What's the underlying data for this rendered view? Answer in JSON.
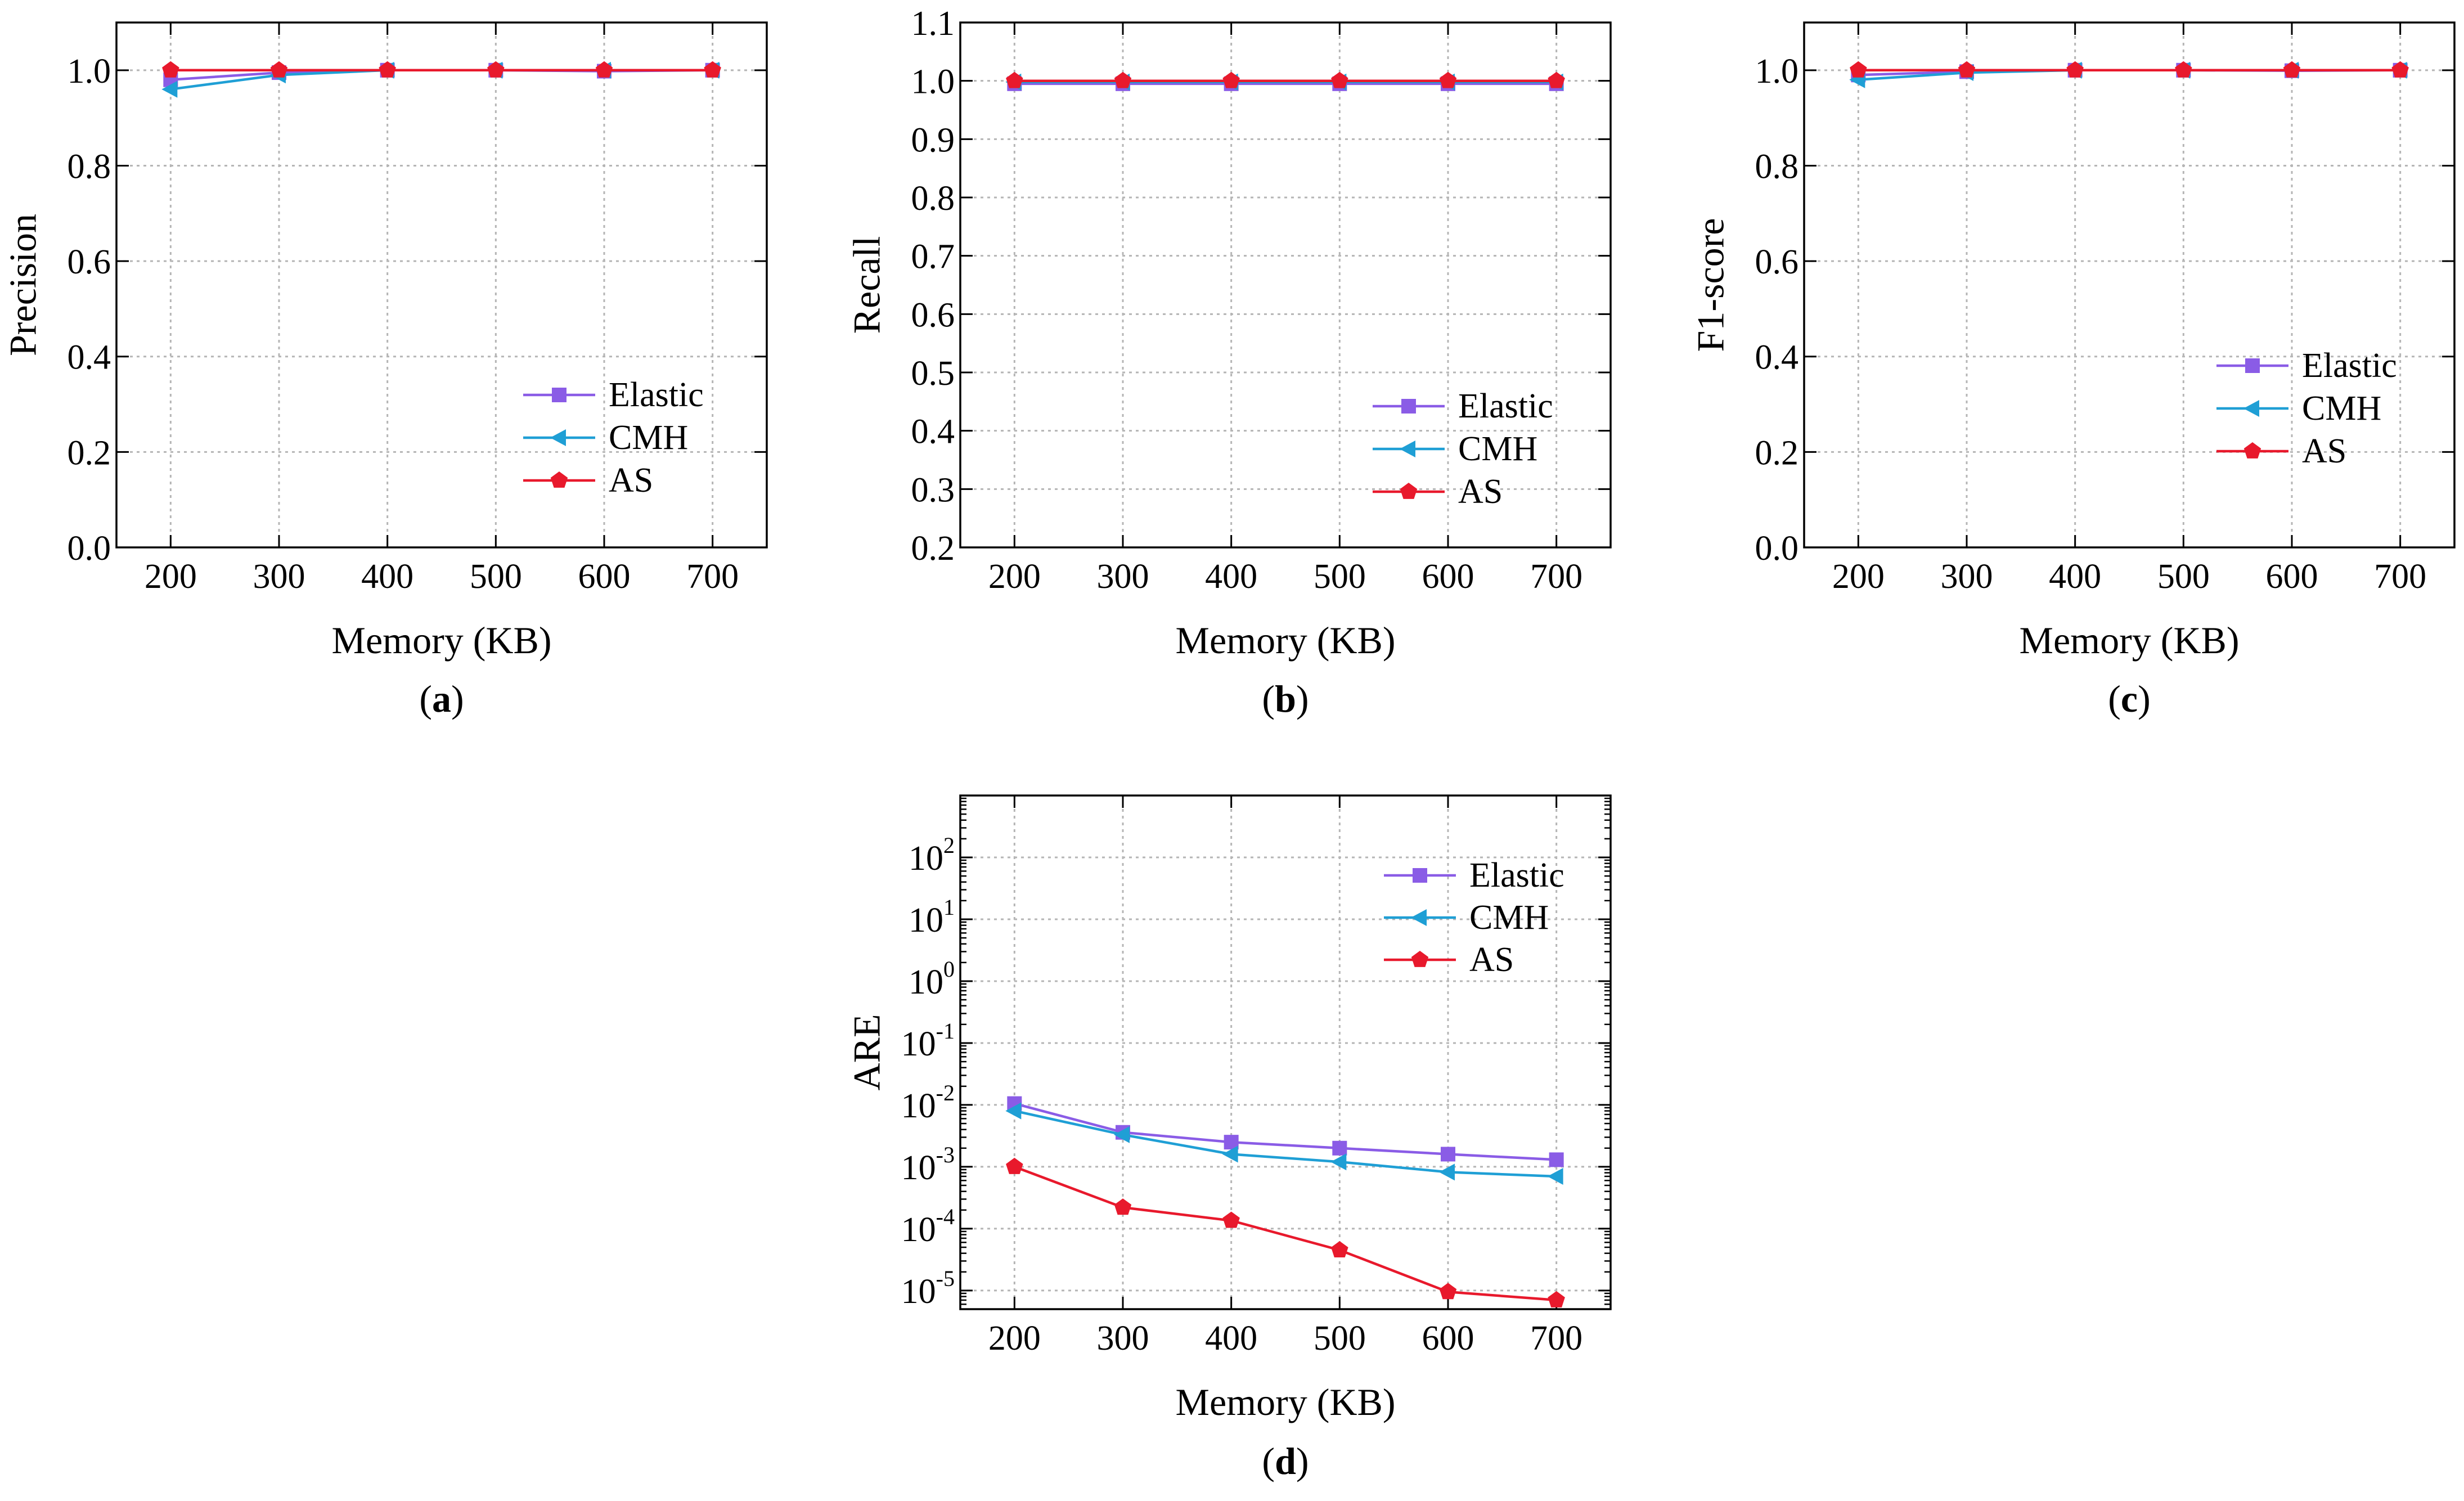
{
  "chart_data": [
    {
      "id": "a",
      "type": "line",
      "caption": "a",
      "xlabel": "Memory (KB)",
      "ylabel": "Precision",
      "yscale": "linear",
      "x": [
        200,
        300,
        400,
        500,
        600,
        700
      ],
      "xticks": [
        "200",
        "300",
        "400",
        "500",
        "600",
        "700"
      ],
      "xlim": [
        150,
        750
      ],
      "ylim": [
        0.0,
        1.1
      ],
      "yticks": [
        0.0,
        0.2,
        0.4,
        0.6,
        0.8,
        1.0
      ],
      "ytick_labels": [
        "0.0",
        "0.2",
        "0.4",
        "0.6",
        "0.8",
        "1.0"
      ],
      "grid": true,
      "legend_position": "lower-right",
      "series": [
        {
          "name": "Elastic",
          "values": [
            0.98,
            0.995,
            1.0,
            1.0,
            0.998,
            1.0
          ]
        },
        {
          "name": "CMH",
          "values": [
            0.96,
            0.99,
            1.0,
            1.0,
            1.0,
            1.0
          ]
        },
        {
          "name": "AS",
          "values": [
            1.0,
            1.0,
            1.0,
            1.0,
            1.0,
            1.0
          ]
        }
      ]
    },
    {
      "id": "b",
      "type": "line",
      "caption": "b",
      "xlabel": "Memory (KB)",
      "ylabel": "Recall",
      "yscale": "linear",
      "x": [
        200,
        300,
        400,
        500,
        600,
        700
      ],
      "xticks": [
        "200",
        "300",
        "400",
        "500",
        "600",
        "700"
      ],
      "xlim": [
        150,
        750
      ],
      "ylim": [
        0.2,
        1.1
      ],
      "yticks": [
        0.2,
        0.3,
        0.4,
        0.5,
        0.6,
        0.7,
        0.8,
        0.9,
        1.0,
        1.1
      ],
      "ytick_labels": [
        "0.2",
        "0.3",
        "0.4",
        "0.5",
        "0.6",
        "0.7",
        "0.8",
        "0.9",
        "1.0",
        "1.1"
      ],
      "grid": true,
      "legend_position": "lower-right",
      "series": [
        {
          "name": "Elastic",
          "values": [
            0.995,
            0.995,
            0.995,
            0.995,
            0.995,
            0.995
          ]
        },
        {
          "name": "CMH",
          "values": [
            0.998,
            0.998,
            0.998,
            0.998,
            0.998,
            0.998
          ]
        },
        {
          "name": "AS",
          "values": [
            1.0,
            1.0,
            1.0,
            1.0,
            1.0,
            1.0
          ]
        }
      ]
    },
    {
      "id": "c",
      "type": "line",
      "caption": "c",
      "xlabel": "Memory (KB)",
      "ylabel": "F1-score",
      "yscale": "linear",
      "x": [
        200,
        300,
        400,
        500,
        600,
        700
      ],
      "xticks": [
        "200",
        "300",
        "400",
        "500",
        "600",
        "700"
      ],
      "xlim": [
        150,
        750
      ],
      "ylim": [
        0.0,
        1.1
      ],
      "yticks": [
        0.0,
        0.2,
        0.4,
        0.6,
        0.8,
        1.0
      ],
      "ytick_labels": [
        "0.0",
        "0.2",
        "0.4",
        "0.6",
        "0.8",
        "1.0"
      ],
      "grid": true,
      "legend_position": "lower-right",
      "series": [
        {
          "name": "Elastic",
          "values": [
            0.99,
            0.997,
            1.0,
            1.0,
            0.999,
            1.0
          ]
        },
        {
          "name": "CMH",
          "values": [
            0.98,
            0.995,
            1.0,
            1.0,
            1.0,
            1.0
          ]
        },
        {
          "name": "AS",
          "values": [
            1.0,
            1.0,
            1.0,
            1.0,
            1.0,
            1.0
          ]
        }
      ]
    },
    {
      "id": "d",
      "type": "line",
      "caption": "d",
      "xlabel": "Memory (KB)",
      "ylabel": "ARE",
      "yscale": "log",
      "x": [
        200,
        300,
        400,
        500,
        600,
        700
      ],
      "xticks": [
        "200",
        "300",
        "400",
        "500",
        "600",
        "700"
      ],
      "xlim": [
        150,
        750
      ],
      "ylim": [
        5e-06,
        1000
      ],
      "yticks": [
        1e-05,
        0.0001,
        0.001,
        0.01,
        0.1,
        1,
        10,
        100
      ],
      "ytick_labels": [
        {
          "base": "10",
          "exp": "-5"
        },
        {
          "base": "10",
          "exp": "-4"
        },
        {
          "base": "10",
          "exp": "-3"
        },
        {
          "base": "10",
          "exp": "-2"
        },
        {
          "base": "10",
          "exp": "-1"
        },
        {
          "base": "10",
          "exp": "0"
        },
        {
          "base": "10",
          "exp": "1"
        },
        {
          "base": "10",
          "exp": "2"
        }
      ],
      "grid": true,
      "legend_position": "upper-right",
      "series": [
        {
          "name": "Elastic",
          "values": [
            0.0105,
            0.0036,
            0.0025,
            0.002,
            0.0016,
            0.0013
          ]
        },
        {
          "name": "CMH",
          "values": [
            0.008,
            0.0033,
            0.0016,
            0.0012,
            0.00082,
            0.0007
          ]
        },
        {
          "name": "AS",
          "values": [
            0.001,
            0.00022,
            0.000135,
            4.5e-05,
            9.5e-06,
            7e-06
          ]
        }
      ]
    }
  ],
  "series_styles": {
    "Elastic": {
      "color": "#8a5ce6",
      "marker": "square"
    },
    "CMH": {
      "color": "#1f9fd5",
      "marker": "triangle-left"
    },
    "AS": {
      "color": "#e8192c",
      "marker": "pentagon"
    }
  }
}
